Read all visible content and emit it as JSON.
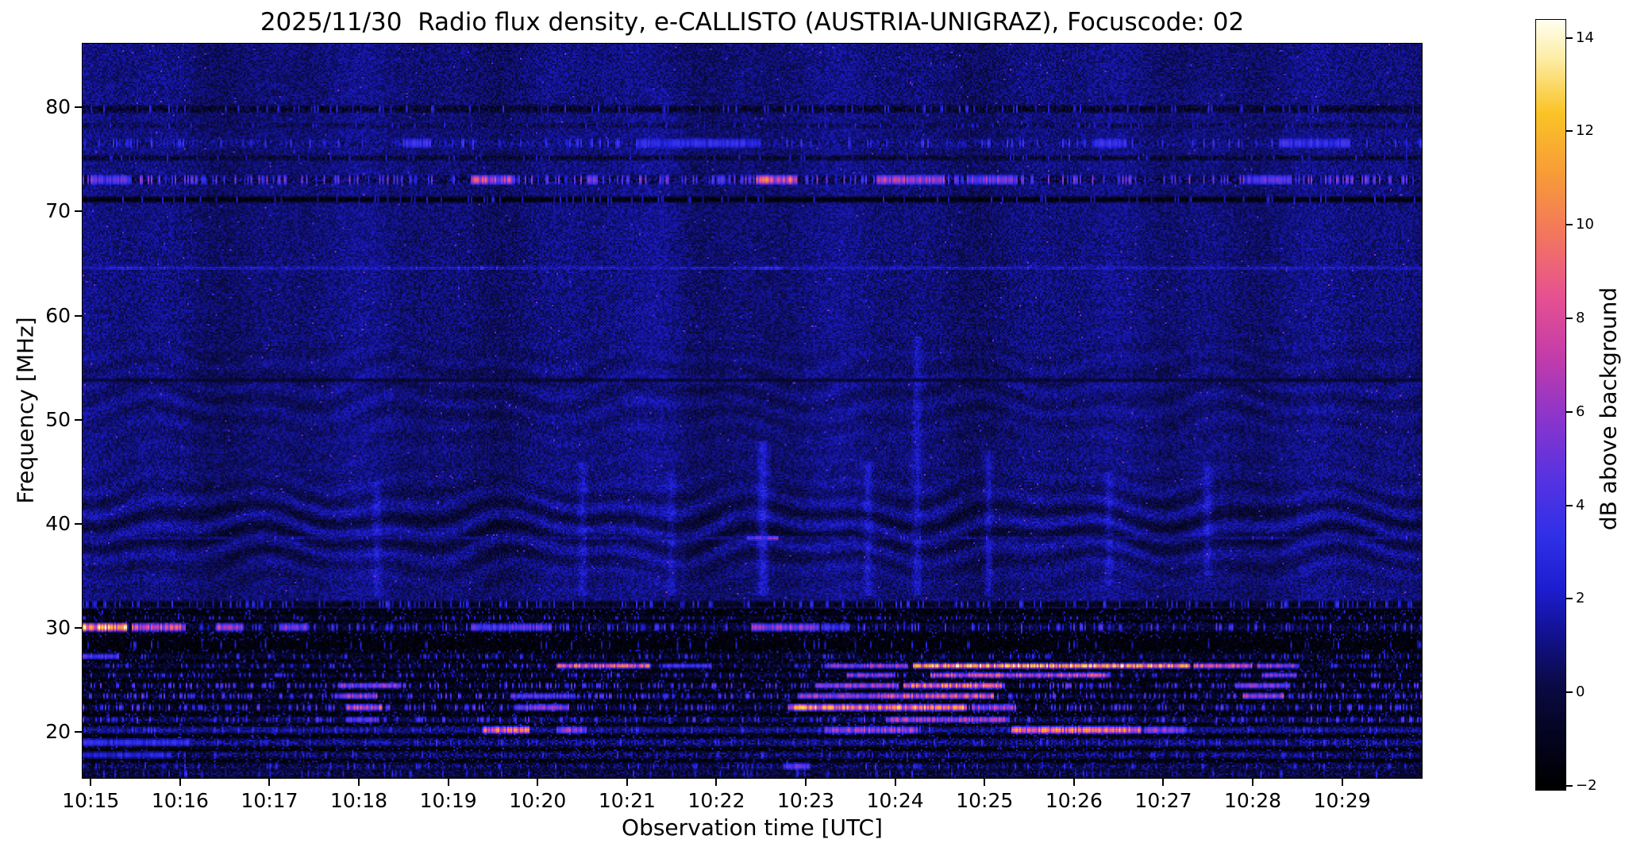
{
  "chart_data": {
    "type": "heatmap",
    "title": "2025/11/30  Radio flux density, e-CALLISTO (AUSTRIA-UNIGRAZ), Focuscode: 02",
    "xlabel": "Observation time [UTC]",
    "ylabel": "Frequency [MHz]",
    "x_tick_labels": [
      "10:15",
      "10:16",
      "10:17",
      "10:18",
      "10:19",
      "10:20",
      "10:21",
      "10:22",
      "10:23",
      "10:24",
      "10:25",
      "10:26",
      "10:27",
      "10:28",
      "10:29"
    ],
    "x_range_minutes": [
      0,
      15
    ],
    "y_tick_values": [
      80,
      70,
      60,
      50,
      40,
      30,
      20
    ],
    "y_tick_labels": [
      "80",
      "70",
      "60",
      "50",
      "40",
      "30",
      "20"
    ],
    "y_range": [
      15.5,
      86.2
    ],
    "grid": false,
    "colors": {
      "figure_bg": "#ffffff",
      "text": "#000000"
    },
    "colorbar": {
      "label": "dB above background",
      "tick_values": [
        14,
        12,
        10,
        8,
        6,
        4,
        2,
        0,
        -2
      ],
      "tick_labels": [
        "14",
        "12",
        "10",
        "8",
        "6",
        "4",
        "2",
        "0",
        "−2"
      ],
      "range": [
        -2.1,
        14.4
      ],
      "position": "right"
    },
    "colormap": {
      "name": "cmrmap-like (black-blue-magenta-orange-yellow-white)",
      "stops": [
        [
          0.0,
          "#000000"
        ],
        [
          0.09,
          "#06062a"
        ],
        [
          0.14,
          "#0b0b49"
        ],
        [
          0.2,
          "#12128f"
        ],
        [
          0.26,
          "#1d1dd0"
        ],
        [
          0.33,
          "#3030e8"
        ],
        [
          0.4,
          "#5433e2"
        ],
        [
          0.48,
          "#8a35cd"
        ],
        [
          0.56,
          "#c23cab"
        ],
        [
          0.64,
          "#e65192"
        ],
        [
          0.72,
          "#f3765f"
        ],
        [
          0.8,
          "#f89c38"
        ],
        [
          0.88,
          "#fbc426"
        ],
        [
          0.95,
          "#fdeda5"
        ],
        [
          1.0,
          "#fffff0"
        ]
      ]
    },
    "background": {
      "base": 0.85,
      "noise": 0.85
    },
    "hf_region": {
      "below": 31.8,
      "base": -1.6,
      "noise": 0.7,
      "speckle_p": 0.12,
      "speckle_db": 3.0
    },
    "ripples": {
      "fmin": 33,
      "fmax": 60,
      "wavelength": 2.3,
      "c1": 39.5,
      "s1": 4.0,
      "amp1": 0.95,
      "c2": 52.5,
      "s2": 4.5,
      "amp2": 0.4,
      "wobble1": 0.85,
      "wfreq1": 2.1,
      "wobble2": 0.5,
      "wfreq2": 4.7
    },
    "streaks": [
      {
        "t": 3.3,
        "w": 0.05,
        "a": 1.0,
        "f0": 33,
        "f1": 44
      },
      {
        "t": 5.6,
        "w": 0.05,
        "a": 1.1,
        "f0": 33,
        "f1": 46
      },
      {
        "t": 6.55,
        "w": 0.25,
        "a": 0.35,
        "f0": 33,
        "f1": 82
      },
      {
        "t": 6.6,
        "w": 0.04,
        "a": 0.9,
        "f0": 33,
        "f1": 45
      },
      {
        "t": 7.62,
        "w": 0.06,
        "a": 1.7,
        "f0": 33,
        "f1": 48
      },
      {
        "t": 8.8,
        "w": 0.05,
        "a": 1.2,
        "f0": 33,
        "f1": 46
      },
      {
        "t": 9.35,
        "w": 0.05,
        "a": 1.1,
        "f0": 33,
        "f1": 58
      },
      {
        "t": 10.15,
        "w": 0.05,
        "a": 1.3,
        "f0": 33,
        "f1": 47
      },
      {
        "t": 11.5,
        "w": 0.04,
        "a": 1.0,
        "f0": 34,
        "f1": 45
      },
      {
        "t": 12.5,
        "w": 0.3,
        "a": 0.25,
        "f0": 33,
        "f1": 82
      },
      {
        "t": 12.6,
        "w": 0.05,
        "a": 1.1,
        "f0": 35,
        "f1": 46
      }
    ],
    "bands": [
      {
        "f": 79.9,
        "hw": 0.45,
        "base": -0.6,
        "var": 1.4,
        "p": 0.12,
        "sv": 2.5,
        "seg": []
      },
      {
        "f": 78.3,
        "hw": 0.3,
        "base": 0.3,
        "var": 1.2,
        "p": 0.1,
        "sv": 2.0,
        "seg": []
      },
      {
        "f": 76.6,
        "hw": 0.55,
        "base": 1.0,
        "var": 1.3,
        "p": 0.15,
        "sv": 3.0,
        "seg": [
          [
            3.6,
            3.9,
            4
          ],
          [
            6.2,
            7.6,
            3.5
          ],
          [
            11.3,
            11.7,
            4
          ],
          [
            13.4,
            14.2,
            4
          ]
        ]
      },
      {
        "f": 75.2,
        "hw": 0.3,
        "base": -0.4,
        "var": 1.2,
        "p": 0.08,
        "sv": 2.0,
        "seg": []
      },
      {
        "f": 73.1,
        "hw": 0.55,
        "base": 0.3,
        "var": 1.8,
        "p": 0.3,
        "sv": 4.5,
        "seg": [
          [
            0.1,
            0.55,
            5
          ],
          [
            4.35,
            4.85,
            8
          ],
          [
            7.55,
            8.0,
            9.5
          ],
          [
            8.9,
            9.65,
            7
          ],
          [
            9.9,
            10.45,
            6
          ],
          [
            13.05,
            13.55,
            4.5
          ]
        ]
      },
      {
        "f": 71.2,
        "hw": 0.35,
        "base": -1.6,
        "var": 0.9,
        "p": 0.1,
        "sv": 2.0,
        "seg": []
      },
      {
        "f": 64.6,
        "hw": 0.22,
        "base": 2.0,
        "var": 0.9,
        "p": 0.05,
        "sv": 3.0,
        "seg": [
          [
            0.3,
            0.7,
            3
          ],
          [
            7.5,
            7.85,
            3.5
          ]
        ]
      },
      {
        "f": 53.8,
        "hw": 0.2,
        "base": -0.5,
        "var": 0.7,
        "p": 0.0,
        "sv": 0.0,
        "seg": []
      },
      {
        "f": 38.6,
        "hw": 0.22,
        "base": 1.0,
        "var": 0.9,
        "p": 0.03,
        "sv": 3.0,
        "seg": [
          [
            7.45,
            7.8,
            6
          ]
        ]
      },
      {
        "f": 32.2,
        "hw": 0.4,
        "base": -1.0,
        "var": 1.3,
        "p": 0.2,
        "sv": 2.6,
        "seg": []
      },
      {
        "f": 30.9,
        "hw": 0.25,
        "base": -0.8,
        "var": 1.0,
        "p": 0.15,
        "sv": 2.5,
        "seg": []
      },
      {
        "f": 30.0,
        "hw": 0.5,
        "base": -0.2,
        "var": 1.6,
        "p": 0.22,
        "sv": 3.5,
        "seg": [
          [
            0.0,
            0.5,
            13
          ],
          [
            0.55,
            1.15,
            8.5
          ],
          [
            1.5,
            1.8,
            7.5
          ],
          [
            2.2,
            2.5,
            6.5
          ],
          [
            4.35,
            5.25,
            5
          ],
          [
            7.5,
            8.25,
            6.5
          ],
          [
            8.3,
            8.6,
            4
          ]
        ]
      },
      {
        "f": 28.3,
        "hw": 0.5,
        "base": -1.7,
        "var": 0.8,
        "p": 0.07,
        "sv": 2.2,
        "seg": []
      },
      {
        "f": 27.2,
        "hw": 0.35,
        "base": -0.6,
        "var": 1.4,
        "p": 0.15,
        "sv": 2.8,
        "seg": [
          [
            0.0,
            0.4,
            5
          ]
        ]
      },
      {
        "f": 26.3,
        "hw": 0.3,
        "base": -0.4,
        "var": 1.5,
        "p": 0.18,
        "sv": 3.0,
        "seg": [
          [
            5.3,
            6.35,
            9.5
          ],
          [
            6.5,
            7.05,
            4.5
          ],
          [
            8.3,
            9.25,
            6.5
          ],
          [
            9.3,
            12.4,
            12.5
          ],
          [
            12.45,
            13.1,
            9
          ],
          [
            13.15,
            13.6,
            7
          ]
        ]
      },
      {
        "f": 25.4,
        "hw": 0.3,
        "base": -0.5,
        "var": 1.5,
        "p": 0.2,
        "sv": 3.2,
        "seg": [
          [
            8.55,
            9.1,
            6.5
          ],
          [
            9.5,
            11.5,
            8.5
          ],
          [
            13.2,
            13.6,
            6
          ]
        ]
      },
      {
        "f": 24.4,
        "hw": 0.35,
        "base": -0.6,
        "var": 1.6,
        "p": 0.3,
        "sv": 4.0,
        "seg": [
          [
            2.85,
            3.55,
            6.5
          ],
          [
            8.2,
            9.15,
            7
          ],
          [
            9.2,
            10.3,
            10.5
          ],
          [
            12.9,
            13.5,
            6
          ]
        ]
      },
      {
        "f": 23.4,
        "hw": 0.35,
        "base": -0.3,
        "var": 1.7,
        "p": 0.32,
        "sv": 4.0,
        "seg": [
          [
            2.9,
            3.3,
            7
          ],
          [
            4.8,
            5.5,
            5
          ],
          [
            8.0,
            9.0,
            7
          ],
          [
            9.0,
            10.2,
            9
          ],
          [
            13.0,
            13.45,
            7.5
          ]
        ]
      },
      {
        "f": 22.3,
        "hw": 0.4,
        "base": -0.4,
        "var": 1.6,
        "p": 0.28,
        "sv": 4.0,
        "seg": [
          [
            2.95,
            3.35,
            9
          ],
          [
            4.85,
            5.45,
            6
          ],
          [
            7.9,
            9.9,
            11.5
          ],
          [
            9.95,
            10.45,
            7
          ]
        ]
      },
      {
        "f": 21.1,
        "hw": 0.4,
        "base": 0.4,
        "var": 1.5,
        "p": 0.25,
        "sv": 3.5,
        "seg": [
          [
            2.95,
            3.3,
            5
          ],
          [
            9.0,
            10.35,
            7
          ]
        ]
      },
      {
        "f": 20.1,
        "hw": 0.45,
        "base": 1.3,
        "var": 1.2,
        "p": 0.2,
        "sv": 3.0,
        "seg": [
          [
            4.5,
            5.0,
            10
          ],
          [
            5.3,
            5.65,
            7
          ],
          [
            8.3,
            9.35,
            7
          ],
          [
            10.4,
            11.85,
            10.5
          ],
          [
            11.9,
            12.35,
            6.5
          ]
        ]
      },
      {
        "f": 18.9,
        "hw": 0.5,
        "base": 1.0,
        "var": 1.6,
        "p": 0.15,
        "sv": 2.8,
        "seg": [
          [
            0.0,
            1.2,
            3.5
          ]
        ]
      },
      {
        "f": 17.7,
        "hw": 0.45,
        "base": 0.6,
        "var": 1.7,
        "p": 0.12,
        "sv": 2.6,
        "seg": [
          [
            0.0,
            1.0,
            3
          ]
        ]
      },
      {
        "f": 16.6,
        "hw": 0.45,
        "base": 0.3,
        "var": 1.7,
        "p": 0.12,
        "sv": 2.6,
        "seg": [
          [
            7.85,
            8.15,
            5.5
          ]
        ]
      },
      {
        "f": 15.9,
        "hw": 0.5,
        "base": 0.0,
        "var": 1.5,
        "p": 0.1,
        "sv": 2.4,
        "seg": []
      }
    ]
  }
}
